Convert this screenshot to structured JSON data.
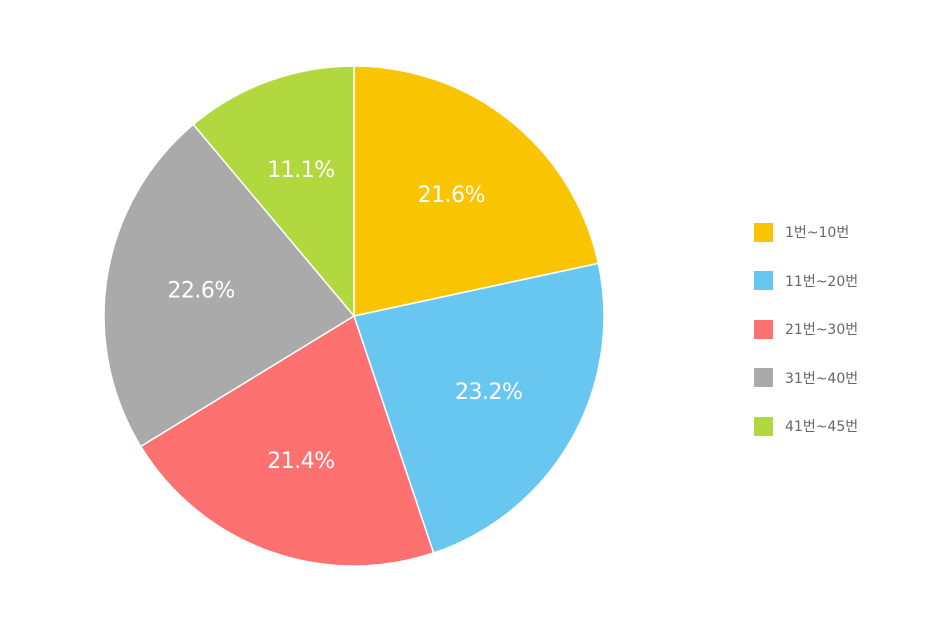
{
  "chart_data": {
    "type": "pie",
    "categories": [
      "1번~10번",
      "11번~20번",
      "21번~30번",
      "31번~40번",
      "41번~45번"
    ],
    "values": [
      21.6,
      23.2,
      21.4,
      22.6,
      11.1
    ],
    "labels": [
      "21.6%",
      "23.2%",
      "21.4%",
      "22.6%",
      "11.1%"
    ],
    "colors": [
      "#f9c401",
      "#67c7f1",
      "#fe7171",
      "#aaaaaa",
      "#b1d93f"
    ],
    "legend_position": "right",
    "start_direction": "top",
    "direction": "clockwise"
  }
}
